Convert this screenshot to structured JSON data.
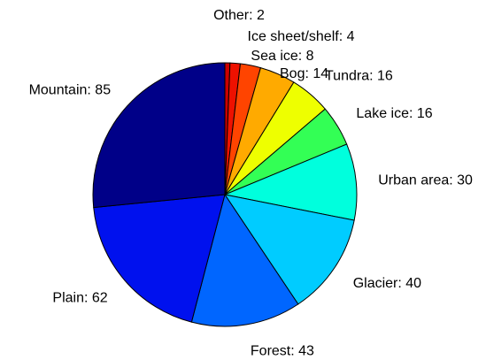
{
  "chart_data": {
    "type": "pie",
    "title": "",
    "start_angle_deg": 90,
    "direction": "clockwise",
    "legend": "none",
    "slices": [
      {
        "label": "Other: 2",
        "category": "Other",
        "value": 2,
        "color": "#cc0000"
      },
      {
        "label": "Ice sheet/shelf: 4",
        "category": "Ice sheet/shelf",
        "value": 4,
        "color": "#ee1100"
      },
      {
        "label": "Sea ice: 8",
        "category": "Sea ice",
        "value": 8,
        "color": "#ff4400"
      },
      {
        "label": "Bog: 14",
        "category": "Bog",
        "value": 14,
        "color": "#ffaa00"
      },
      {
        "label": "Tundra: 16",
        "category": "Tundra",
        "value": 16,
        "color": "#eeff00"
      },
      {
        "label": "Lake ice: 16",
        "category": "Lake ice",
        "value": 16,
        "color": "#33ff55"
      },
      {
        "label": "Urban area: 30",
        "category": "Urban area",
        "value": 30,
        "color": "#00ffdd"
      },
      {
        "label": "Glacier: 40",
        "category": "Glacier",
        "value": 40,
        "color": "#00ccff"
      },
      {
        "label": "Forest: 43",
        "category": "Forest",
        "value": 43,
        "color": "#0066ff"
      },
      {
        "label": "Plain: 62",
        "category": "Plain",
        "value": 62,
        "color": "#0011ee"
      },
      {
        "label": "Mountain: 85",
        "category": "Mountain",
        "value": 85,
        "color": "#000088"
      }
    ]
  }
}
